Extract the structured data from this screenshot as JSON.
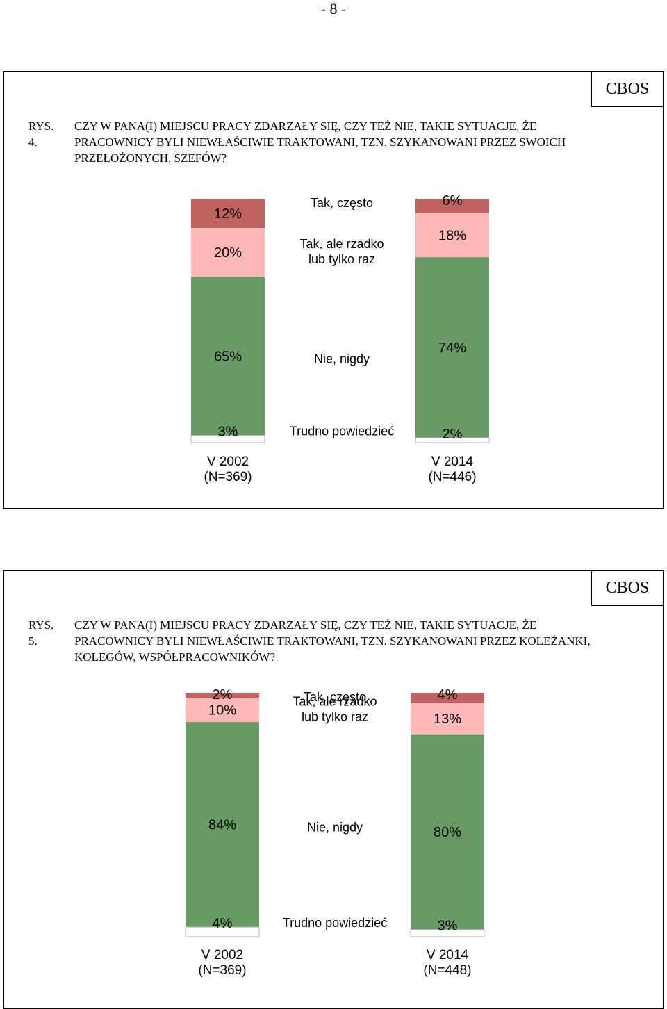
{
  "page": {
    "number": "- 8 -"
  },
  "charts": [
    {
      "brand": "CBOS",
      "figure_number": "RYS. 4.",
      "title": "CZY W PANA(I) MIEJSCU PRACY ZDARZAŁY SIĘ, CZY TEŻ NIE, TAKIE SYTUACJE, ŻE PRACOWNICY BYLI NIEWŁAŚCIWIE TRAKTOWANI, TZN. SZYKANOWANI PRZEZ SWOICH PRZEŁOŻONYCH, SZEFÓW?"
    },
    {
      "brand": "CBOS",
      "figure_number": "RYS. 5.",
      "title": "CZY W PANA(I) MIEJSCU PRACY ZDARZAŁY SIĘ, CZY TEŻ NIE, TAKIE SYTUACJE, ŻE PRACOWNICY BYLI NIEWŁAŚCIWIE TRAKTOWANI, TZN. SZYKANOWANI PRZEZ KOLEŻANKI, KOLEGÓW, WSPÓŁPRACOWNIKÓW?"
    }
  ],
  "chart_data": [
    {
      "type": "bar",
      "stacked": true,
      "title": "CZY W PANA(I) MIEJSCU PRACY ZDARZAŁY SIĘ, CZY TEŻ NIE, TAKIE SYTUACJE, ŻE PRACOWNICY BYLI NIEWŁAŚCIWIE TRAKTOWANI, TZN. SZYKANOWANI PRZEZ SWOICH PRZEŁOŻONYCH, SZEFÓW?",
      "categories": [
        [
          "V 2002",
          "(N=369)"
        ],
        [
          "V 2014",
          "(N=446)"
        ]
      ],
      "series": [
        {
          "name": "Tak, często",
          "color": "#c0625f",
          "values": [
            12,
            6
          ],
          "labels": [
            "12%",
            "6%"
          ]
        },
        {
          "name": "Tak, ale rzadko lub tylko raz",
          "color": "#ffb8b8",
          "values": [
            20,
            18
          ],
          "labels": [
            "20%",
            "18%"
          ]
        },
        {
          "name": "Nie, nigdy",
          "color": "#679a65",
          "values": [
            65,
            74
          ],
          "labels": [
            "65%",
            "74%"
          ]
        },
        {
          "name": "Trudno powiedzieć",
          "color": "#ffffff",
          "values": [
            3,
            2
          ],
          "labels": [
            "3%",
            "2%"
          ]
        }
      ],
      "legend_lines": [
        [
          "Tak, często"
        ],
        [
          "Tak, ale rzadko",
          "lub tylko raz"
        ],
        [
          "Nie, nigdy"
        ],
        [
          "Trudno powiedzieć"
        ]
      ],
      "legend_placement": "between bars",
      "grid": false
    },
    {
      "type": "bar",
      "stacked": true,
      "title": "CZY W PANA(I) MIEJSCU PRACY ZDARZAŁY SIĘ, CZY TEŻ NIE, TAKIE SYTUACJE, ŻE PRACOWNICY BYLI NIEWŁAŚCIWIE TRAKTOWANI, TZN. SZYKANOWANI PRZEZ KOLEŻANKI, KOLEGÓW, WSPÓŁPRACOWNIKÓW?",
      "categories": [
        [
          "V 2002",
          "(N=369)"
        ],
        [
          "V 2014",
          "(N=448)"
        ]
      ],
      "series": [
        {
          "name": "Tak, często",
          "color": "#c0625f",
          "values": [
            2,
            4
          ],
          "labels": [
            "2%",
            "4%"
          ]
        },
        {
          "name": "Tak, ale rzadko lub tylko raz",
          "color": "#ffb8b8",
          "values": [
            10,
            13
          ],
          "labels": [
            "10%",
            "13%"
          ]
        },
        {
          "name": "Nie, nigdy",
          "color": "#679a65",
          "values": [
            84,
            80
          ],
          "labels": [
            "84%",
            "80%"
          ]
        },
        {
          "name": "Trudno powiedzieć",
          "color": "#ffffff",
          "values": [
            4,
            3
          ],
          "labels": [
            "4%",
            "3%"
          ]
        }
      ],
      "legend_lines": [
        [
          "Tak, często"
        ],
        [
          "Tak, ale rzadko",
          "lub tylko raz"
        ],
        [
          "Nie, nigdy"
        ],
        [
          "Trudno powiedzieć"
        ]
      ],
      "legend_placement": "between bars",
      "grid": false
    }
  ]
}
